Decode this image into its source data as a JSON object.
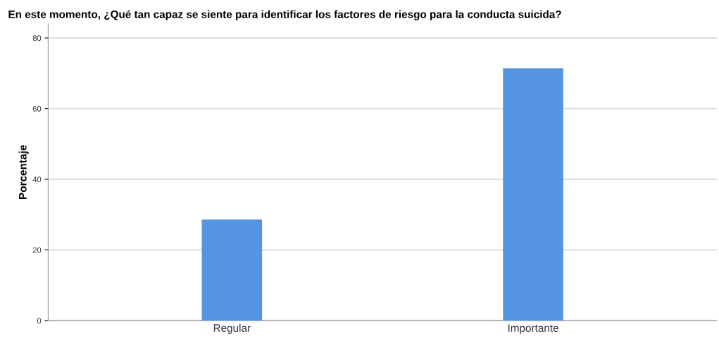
{
  "chart_data": {
    "type": "bar",
    "title": "En este momento, ¿Qué tan capaz se siente para identificar los factores de riesgo para la conducta suicida?",
    "ylabel": "Porcentaje",
    "categories": [
      "Regular",
      "Importante"
    ],
    "values": [
      28.6,
      71.4
    ],
    "color": "#5594e2",
    "ylim": [
      0,
      84
    ],
    "yticks": [
      0,
      20,
      40,
      60,
      80
    ],
    "grid": "y",
    "legend": false
  }
}
